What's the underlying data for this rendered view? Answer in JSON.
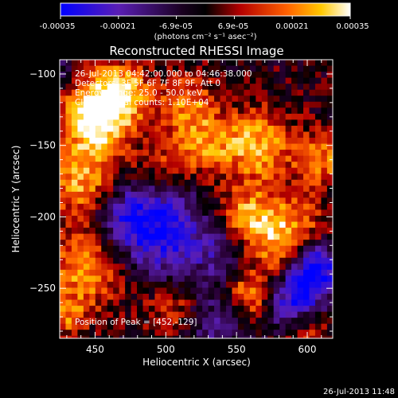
{
  "colorbar": {
    "ticks": [
      "-0.00035",
      "-0.00021",
      "-6.9e-05",
      "6.9e-05",
      "0.00021",
      "0.00035"
    ],
    "unit_label": "(photons cm⁻² s⁻¹ asec⁻²)",
    "range": [
      -0.00035,
      0.00035
    ]
  },
  "chart_data": {
    "type": "heatmap",
    "title": "Reconstructed RHESSI Image",
    "xlabel": "Heliocentric X (arcsec)",
    "ylabel": "Heliocentric Y (arcsec)",
    "xlim": [
      425,
      618
    ],
    "ylim": [
      -285,
      -90
    ],
    "xticks": [
      450,
      500,
      550,
      600
    ],
    "xtick_labels": [
      "450",
      "500",
      "550",
      "600"
    ],
    "yticks": [
      -100,
      -150,
      -200,
      -250
    ],
    "ytick_labels": [
      "−100",
      "−150",
      "−200",
      "−250"
    ],
    "colormap": "blue-purple-black-red-orange-yellow-white",
    "peak": {
      "x": 452,
      "y": -129
    },
    "annotations": [
      "26-Jul-2013 04:42:00.000 to 04:46:38.000",
      "Detectors: 3F 5F 6F 7F 8F 9F, Att 0",
      "Energy Range: 25.0 - 50.0 keV",
      "Clean     Total counts: 1.10E+04"
    ],
    "peak_label": "Position of Peak = [452,-129]"
  },
  "footer": {
    "timestamp": "26-Jul-2013 11:48"
  }
}
